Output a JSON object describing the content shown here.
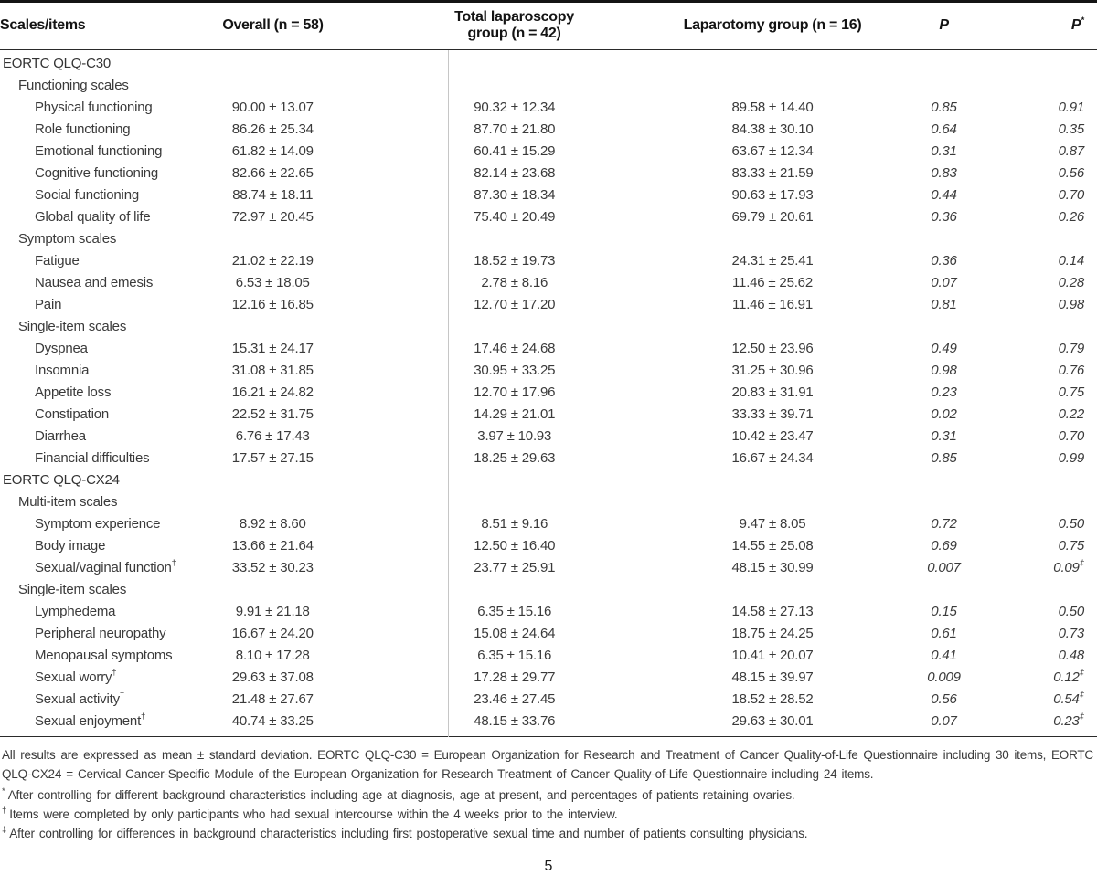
{
  "table": {
    "header": {
      "scales": "Scales/items",
      "overall": "Overall (n = 58)",
      "laparoscopy": "Total laparoscopy group (n = 42)",
      "laparotomy": "Laparotomy group (n = 16)",
      "p": "P",
      "p_adj": "P",
      "p_adj_sup": "*"
    },
    "rows": [
      {
        "label": "EORTC QLQ-C30",
        "indent": 0
      },
      {
        "label": "Functioning scales",
        "indent": 1
      },
      {
        "label": "Physical functioning",
        "indent": 2,
        "overall": "90.00 ± 13.07",
        "laparoscopy": "90.32 ± 12.34",
        "laparotomy": "89.58 ± 14.40",
        "p": "0.85",
        "p_adj": "0.91"
      },
      {
        "label": "Role functioning",
        "indent": 2,
        "overall": "86.26 ± 25.34",
        "laparoscopy": "87.70 ± 21.80",
        "laparotomy": "84.38 ± 30.10",
        "p": "0.64",
        "p_adj": "0.35"
      },
      {
        "label": "Emotional functioning",
        "indent": 2,
        "overall": "61.82 ± 14.09",
        "laparoscopy": "60.41 ± 15.29",
        "laparotomy": "63.67 ± 12.34",
        "p": "0.31",
        "p_adj": "0.87"
      },
      {
        "label": "Cognitive functioning",
        "indent": 2,
        "overall": "82.66 ± 22.65",
        "laparoscopy": "82.14 ± 23.68",
        "laparotomy": "83.33 ± 21.59",
        "p": "0.83",
        "p_adj": "0.56"
      },
      {
        "label": "Social functioning",
        "indent": 2,
        "overall": "88.74 ± 18.11",
        "laparoscopy": "87.30 ± 18.34",
        "laparotomy": "90.63 ± 17.93",
        "p": "0.44",
        "p_adj": "0.70"
      },
      {
        "label": "Global quality of life",
        "indent": 2,
        "overall": "72.97 ± 20.45",
        "laparoscopy": "75.40 ± 20.49",
        "laparotomy": "69.79 ± 20.61",
        "p": "0.36",
        "p_adj": "0.26"
      },
      {
        "label": "Symptom scales",
        "indent": 1
      },
      {
        "label": "Fatigue",
        "indent": 2,
        "overall": "21.02 ± 22.19",
        "laparoscopy": "18.52 ± 19.73",
        "laparotomy": "24.31 ± 25.41",
        "p": "0.36",
        "p_adj": "0.14"
      },
      {
        "label": "Nausea and emesis",
        "indent": 2,
        "overall": "6.53 ± 18.05",
        "laparoscopy": "2.78 ± 8.16",
        "laparotomy": "11.46 ± 25.62",
        "p": "0.07",
        "p_adj": "0.28"
      },
      {
        "label": "Pain",
        "indent": 2,
        "overall": "12.16 ± 16.85",
        "laparoscopy": "12.70 ± 17.20",
        "laparotomy": "11.46 ± 16.91",
        "p": "0.81",
        "p_adj": "0.98"
      },
      {
        "label": "Single-item scales",
        "indent": 1
      },
      {
        "label": "Dyspnea",
        "indent": 2,
        "overall": "15.31 ± 24.17",
        "laparoscopy": "17.46 ± 24.68",
        "laparotomy": "12.50 ± 23.96",
        "p": "0.49",
        "p_adj": "0.79"
      },
      {
        "label": "Insomnia",
        "indent": 2,
        "overall": "31.08 ± 31.85",
        "laparoscopy": "30.95 ± 33.25",
        "laparotomy": "31.25 ± 30.96",
        "p": "0.98",
        "p_adj": "0.76"
      },
      {
        "label": "Appetite loss",
        "indent": 2,
        "overall": "16.21 ± 24.82",
        "laparoscopy": "12.70 ± 17.96",
        "laparotomy": "20.83 ± 31.91",
        "p": "0.23",
        "p_adj": "0.75"
      },
      {
        "label": "Constipation",
        "indent": 2,
        "overall": "22.52 ± 31.75",
        "laparoscopy": "14.29 ± 21.01",
        "laparotomy": "33.33 ± 39.71",
        "p": "0.02",
        "p_adj": "0.22"
      },
      {
        "label": "Diarrhea",
        "indent": 2,
        "overall": "6.76 ± 17.43",
        "laparoscopy": "3.97 ± 10.93",
        "laparotomy": "10.42 ± 23.47",
        "p": "0.31",
        "p_adj": "0.70"
      },
      {
        "label": "Financial difficulties",
        "indent": 2,
        "overall": "17.57 ± 27.15",
        "laparoscopy": "18.25 ± 29.63",
        "laparotomy": "16.67 ± 24.34",
        "p": "0.85",
        "p_adj": "0.99"
      },
      {
        "label": "EORTC QLQ-CX24",
        "indent": 0
      },
      {
        "label": "Multi-item scales",
        "indent": 1
      },
      {
        "label": "Symptom experience",
        "indent": 2,
        "overall": "8.92 ± 8.60",
        "laparoscopy": "8.51 ± 9.16",
        "laparotomy": "9.47 ± 8.05",
        "p": "0.72",
        "p_adj": "0.50"
      },
      {
        "label": "Body image",
        "indent": 2,
        "overall": "13.66 ± 21.64",
        "laparoscopy": "12.50 ± 16.40",
        "laparotomy": "14.55 ± 25.08",
        "p": "0.69",
        "p_adj": "0.75"
      },
      {
        "label": "Sexual/vaginal function",
        "label_sup": "†",
        "indent": 2,
        "overall": "33.52 ± 30.23",
        "laparoscopy": "23.77 ± 25.91",
        "laparotomy": "48.15 ± 30.99",
        "p": "0.007",
        "p_adj": "0.09",
        "p_adj_sup": "‡"
      },
      {
        "label": "Single-item scales",
        "indent": 1
      },
      {
        "label": "Lymphedema",
        "indent": 2,
        "overall": "9.91 ± 21.18",
        "laparoscopy": "6.35 ± 15.16",
        "laparotomy": "14.58 ± 27.13",
        "p": "0.15",
        "p_adj": "0.50"
      },
      {
        "label": "Peripheral neuropathy",
        "indent": 2,
        "overall": "16.67 ± 24.20",
        "laparoscopy": "15.08 ± 24.64",
        "laparotomy": "18.75 ± 24.25",
        "p": "0.61",
        "p_adj": "0.73"
      },
      {
        "label": "Menopausal symptoms",
        "indent": 2,
        "overall": "8.10 ± 17.28",
        "laparoscopy": "6.35 ± 15.16",
        "laparotomy": "10.41 ± 20.07",
        "p": "0.41",
        "p_adj": "0.48"
      },
      {
        "label": "Sexual worry",
        "label_sup": "†",
        "indent": 2,
        "overall": "29.63 ± 37.08",
        "laparoscopy": "17.28 ± 29.77",
        "laparotomy": "48.15 ± 39.97",
        "p": "0.009",
        "p_adj": "0.12",
        "p_adj_sup": "‡"
      },
      {
        "label": "Sexual activity",
        "label_sup": "†",
        "indent": 2,
        "overall": "21.48 ± 27.67",
        "laparoscopy": "23.46 ± 27.45",
        "laparotomy": "18.52 ± 28.52",
        "p": "0.56",
        "p_adj": "0.54",
        "p_adj_sup": "‡"
      },
      {
        "label": "Sexual enjoyment",
        "label_sup": "†",
        "indent": 2,
        "overall": "40.74 ± 33.25",
        "laparoscopy": "48.15 ± 33.76",
        "laparotomy": "29.63 ± 30.01",
        "p": "0.07",
        "p_adj": "0.23",
        "p_adj_sup": "‡"
      }
    ]
  },
  "footnotes": {
    "general": "All results are expressed as mean ± standard deviation. EORTC QLQ-C30 = European Organization for Research and Treatment of Cancer Quality-of-Life Questionnaire including 30 items, EORTC QLQ-CX24 = Cervical Cancer-Specific Module of the European Organization for Research Treatment of Cancer Quality-of-Life Questionnaire including 24 items.",
    "items": [
      {
        "marker": "*",
        "text": "After controlling for different background characteristics including age at diagnosis, age at present, and percentages of patients retaining ovaries."
      },
      {
        "marker": "†",
        "text": "Items were completed by only participants who had sexual intercourse within the 4 weeks prior to the interview."
      },
      {
        "marker": "‡",
        "text": "After controlling for differences in background characteristics including first postoperative sexual time and number of patients consulting physicians."
      }
    ]
  },
  "page_number": "5"
}
